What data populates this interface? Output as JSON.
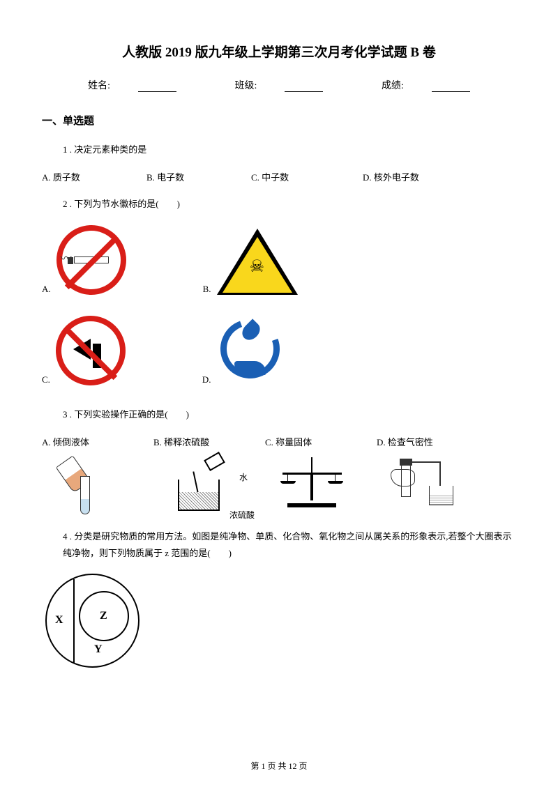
{
  "title": "人教版 2019 版九年级上学期第三次月考化学试题 B 卷",
  "form": {
    "name_label": "姓名:",
    "class_label": "班级:",
    "score_label": "成绩:"
  },
  "section1": "一、单选题",
  "q1": {
    "text": "1 . 决定元素种类的是",
    "a": "A. 质子数",
    "b": "B. 电子数",
    "c": "C. 中子数",
    "d": "D. 核外电子数"
  },
  "q2": {
    "text": "2 . 下列为节水徽标的是(　　)",
    "a": "A.",
    "b": "B.",
    "c": "C.",
    "d": "D."
  },
  "q3": {
    "text": "3 . 下列实验操作正确的是(　　)",
    "a": "A. 倾倒液体",
    "b": "B. 稀释浓硫酸",
    "c": "C. 称量固体",
    "d": "D. 检查气密性",
    "water_label": "水",
    "acid_label": "浓硫酸"
  },
  "q4": {
    "text": "4 . 分类是研究物质的常用方法。如图是纯净物、单质、化合物、氧化物之间从属关系的形象表示,若整个大圈表示纯净物，则下列物质属于 z 范围的是(　　)",
    "x": "X",
    "y": "Y",
    "z": "Z"
  },
  "footer": "第 1 页 共 12 页",
  "colors": {
    "red": "#d91e18",
    "yellow": "#f9d71c",
    "blue": "#1a5fb4",
    "black": "#000000"
  }
}
